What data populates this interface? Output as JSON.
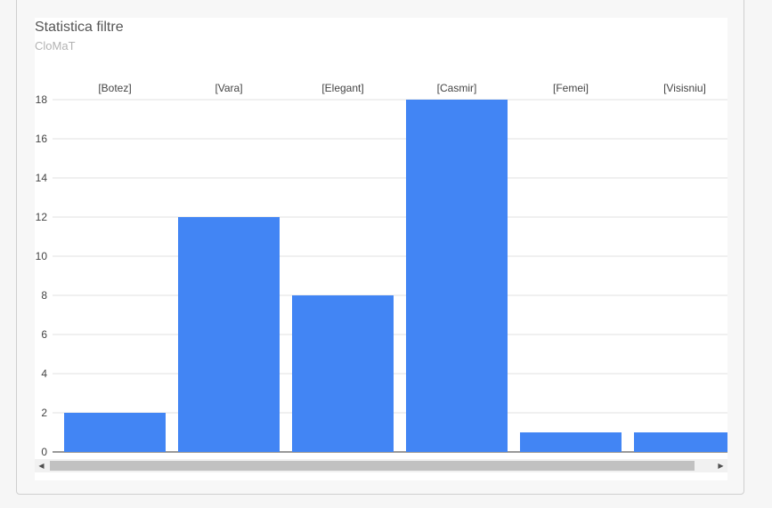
{
  "chart_data": {
    "type": "bar",
    "title": "Statistica filtre",
    "subtitle": "CloMaT",
    "categories": [
      "[Botez]",
      "[Vara]",
      "[Elegant]",
      "[Casmir]",
      "[Femei]",
      "[Visisniu]"
    ],
    "values": [
      2,
      12,
      8,
      18,
      1,
      1
    ],
    "ylim": [
      0,
      18
    ],
    "yticks": [
      0,
      2,
      4,
      6,
      8,
      10,
      12,
      14,
      16,
      18
    ],
    "grid": true,
    "legend": "none",
    "bar_color": "#4285f4"
  },
  "scrollbar": {
    "left_arrow": "◀",
    "right_arrow": "▶"
  }
}
